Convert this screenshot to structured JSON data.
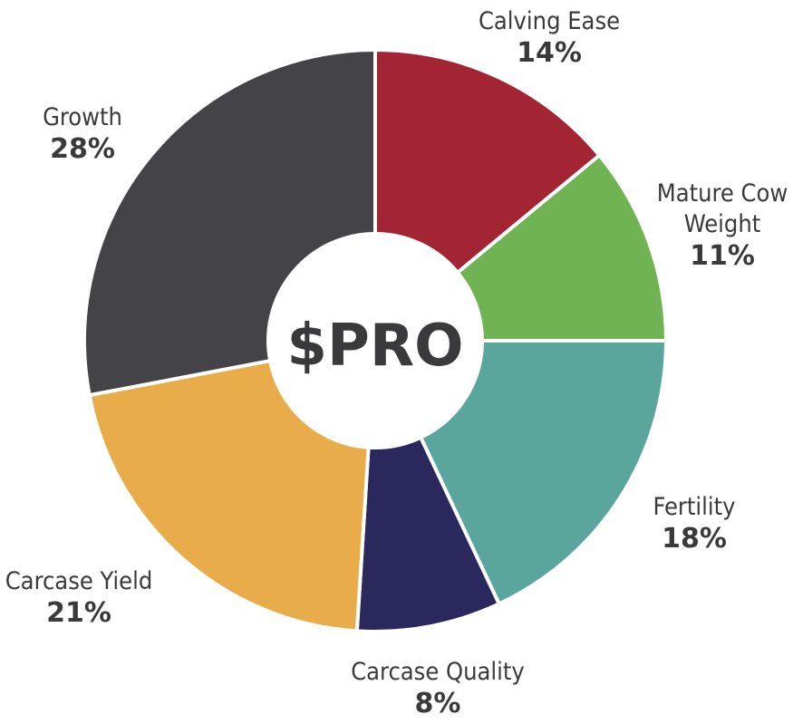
{
  "chart_data": {
    "type": "pie",
    "center_label": "$PRO",
    "slices": [
      {
        "name": "Calving Ease",
        "label_lines": [
          "Calving Ease"
        ],
        "value": 14,
        "percent_label": "14%",
        "color": "#a32433"
      },
      {
        "name": "Mature Cow Weight",
        "label_lines": [
          "Mature Cow",
          "Weight"
        ],
        "value": 11,
        "percent_label": "11%",
        "color": "#6fb352"
      },
      {
        "name": "Fertility",
        "label_lines": [
          "Fertility"
        ],
        "value": 18,
        "percent_label": "18%",
        "color": "#5aa69c"
      },
      {
        "name": "Carcase Quality",
        "label_lines": [
          "Carcase Quality"
        ],
        "value": 8,
        "percent_label": "8%",
        "color": "#2b285e"
      },
      {
        "name": "Carcase Yield",
        "label_lines": [
          "Carcase Yield"
        ],
        "value": 21,
        "percent_label": "21%",
        "color": "#e8ad4a"
      },
      {
        "name": "Growth",
        "label_lines": [
          "Growth"
        ],
        "value": 28,
        "percent_label": "28%",
        "color": "#434348"
      }
    ]
  }
}
